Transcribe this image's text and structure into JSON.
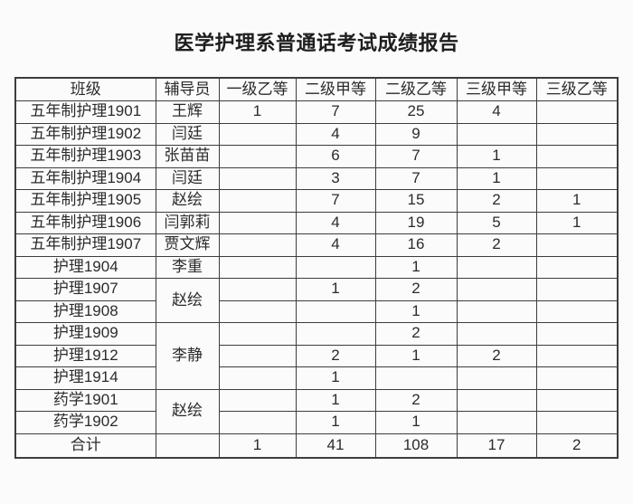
{
  "title": "医学护理系普通话考试成绩报告",
  "colors": {
    "border": "#3d3d3d",
    "text": "#2b2b2b",
    "background": "#fbfbfb"
  },
  "table": {
    "headers": [
      "班级",
      "辅导员",
      "一级乙等",
      "二级甲等",
      "二级乙等",
      "三级甲等",
      "三级乙等"
    ],
    "rows": [
      {
        "class_name": "五年制护理1901",
        "counselor": "王辉",
        "rowspan": 1,
        "values": [
          "1",
          "7",
          "25",
          "4",
          ""
        ]
      },
      {
        "class_name": "五年制护理1902",
        "counselor": "闫廷",
        "rowspan": 1,
        "values": [
          "",
          "4",
          "9",
          "",
          ""
        ]
      },
      {
        "class_name": "五年制护理1903",
        "counselor": "张苗苗",
        "rowspan": 1,
        "values": [
          "",
          "6",
          "7",
          "1",
          ""
        ]
      },
      {
        "class_name": "五年制护理1904",
        "counselor": "闫廷",
        "rowspan": 1,
        "values": [
          "",
          "3",
          "7",
          "1",
          ""
        ]
      },
      {
        "class_name": "五年制护理1905",
        "counselor": "赵绘",
        "rowspan": 1,
        "values": [
          "",
          "7",
          "15",
          "2",
          "1"
        ]
      },
      {
        "class_name": "五年制护理1906",
        "counselor": "闫郭莉",
        "rowspan": 1,
        "values": [
          "",
          "4",
          "19",
          "5",
          "1"
        ]
      },
      {
        "class_name": "五年制护理1907",
        "counselor": "贾文辉",
        "rowspan": 1,
        "values": [
          "",
          "4",
          "16",
          "2",
          ""
        ]
      },
      {
        "class_name": "护理1904",
        "counselor": "李重",
        "rowspan": 1,
        "values": [
          "",
          "",
          "1",
          "",
          ""
        ]
      },
      {
        "class_name": "护理1907",
        "counselor": "赵绘",
        "rowspan": 2,
        "values": [
          "",
          "1",
          "2",
          "",
          ""
        ]
      },
      {
        "class_name": "护理1908",
        "counselor": null,
        "values": [
          "",
          "",
          "1",
          "",
          ""
        ]
      },
      {
        "class_name": "护理1909",
        "counselor": "李静",
        "rowspan": 3,
        "values": [
          "",
          "",
          "2",
          "",
          ""
        ]
      },
      {
        "class_name": "护理1912",
        "counselor": null,
        "values": [
          "",
          "2",
          "1",
          "2",
          ""
        ]
      },
      {
        "class_name": "护理1914",
        "counselor": null,
        "values": [
          "",
          "1",
          "",
          "",
          ""
        ]
      },
      {
        "class_name": "药学1901",
        "counselor": "赵绘",
        "rowspan": 2,
        "values": [
          "",
          "1",
          "2",
          "",
          ""
        ]
      },
      {
        "class_name": "药学1902",
        "counselor": null,
        "values": [
          "",
          "1",
          "1",
          "",
          ""
        ]
      }
    ],
    "total_row": {
      "label": "合计",
      "counselor": "",
      "values": [
        "1",
        "41",
        "108",
        "17",
        "2"
      ]
    }
  }
}
